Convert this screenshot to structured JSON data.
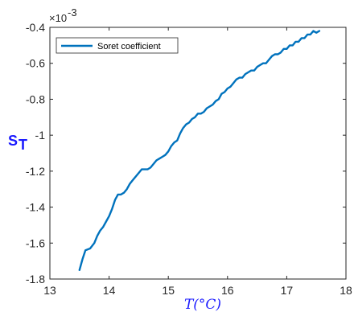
{
  "chart_data": {
    "type": "line",
    "xlabel": "T(°C)",
    "ylabel_main": "S",
    "ylabel_sub": "T",
    "y_exponent_base": "×10",
    "y_exponent_power": "-3",
    "xlim": [
      13,
      18
    ],
    "ylim": [
      -1.8,
      -0.4
    ],
    "x_ticks": [
      13,
      14,
      15,
      16,
      17,
      18
    ],
    "y_ticks": [
      -0.4,
      -0.6,
      -0.8,
      -1,
      -1.2,
      -1.4,
      -1.6,
      -1.8
    ],
    "x_tick_labels": [
      "13",
      "14",
      "15",
      "16",
      "17",
      "18"
    ],
    "y_tick_labels": [
      "-0.4",
      "-0.6",
      "-0.8",
      "-1",
      "-1.2",
      "-1.4",
      "-1.6",
      "-1.8"
    ],
    "grid": false,
    "legend_position": "top-left",
    "colors": {
      "series": "#0072BD",
      "axis_label": "#1a1aff"
    },
    "series": [
      {
        "name": "Soret coefficient",
        "x": [
          13.5,
          13.55,
          13.6,
          13.68,
          13.75,
          13.8,
          13.85,
          13.9,
          13.95,
          14.0,
          14.05,
          14.1,
          14.15,
          14.2,
          14.25,
          14.3,
          14.35,
          14.4,
          14.5,
          14.55,
          14.6,
          14.65,
          14.7,
          14.75,
          14.8,
          14.85,
          14.9,
          14.95,
          15.0,
          15.05,
          15.1,
          15.15,
          15.2,
          15.25,
          15.3,
          15.35,
          15.4,
          15.45,
          15.5,
          15.55,
          15.6,
          15.65,
          15.7,
          15.75,
          15.8,
          15.85,
          15.9,
          15.95,
          16.0,
          16.05,
          16.1,
          16.15,
          16.2,
          16.25,
          16.3,
          16.35,
          16.4,
          16.45,
          16.5,
          16.55,
          16.6,
          16.65,
          16.7,
          16.75,
          16.8,
          16.85,
          16.9,
          16.95,
          17.0,
          17.05,
          17.1,
          17.15,
          17.2,
          17.25,
          17.3,
          17.35,
          17.4,
          17.45,
          17.5,
          17.55
        ],
        "y": [
          -1.75,
          -1.69,
          -1.64,
          -1.63,
          -1.6,
          -1.56,
          -1.53,
          -1.51,
          -1.48,
          -1.45,
          -1.41,
          -1.36,
          -1.33,
          -1.33,
          -1.32,
          -1.3,
          -1.27,
          -1.25,
          -1.21,
          -1.19,
          -1.19,
          -1.19,
          -1.18,
          -1.16,
          -1.14,
          -1.13,
          -1.12,
          -1.11,
          -1.09,
          -1.06,
          -1.04,
          -1.03,
          -0.99,
          -0.96,
          -0.94,
          -0.93,
          -0.91,
          -0.9,
          -0.88,
          -0.88,
          -0.87,
          -0.85,
          -0.84,
          -0.83,
          -0.81,
          -0.8,
          -0.77,
          -0.76,
          -0.74,
          -0.73,
          -0.71,
          -0.69,
          -0.68,
          -0.68,
          -0.66,
          -0.65,
          -0.64,
          -0.64,
          -0.62,
          -0.61,
          -0.6,
          -0.6,
          -0.58,
          -0.56,
          -0.55,
          -0.55,
          -0.54,
          -0.52,
          -0.52,
          -0.5,
          -0.5,
          -0.48,
          -0.48,
          -0.46,
          -0.46,
          -0.44,
          -0.44,
          -0.42,
          -0.43,
          -0.42
        ]
      }
    ]
  }
}
